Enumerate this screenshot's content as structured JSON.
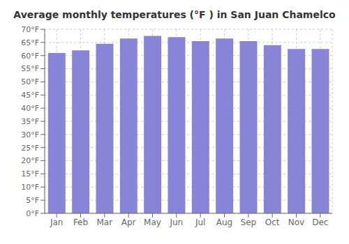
{
  "chart_data": {
    "type": "bar",
    "title": "Average monthly temperatures (°F ) in San Juan Chamelco",
    "categories": [
      "Jan",
      "Feb",
      "Mar",
      "Apr",
      "May",
      "Jun",
      "Jul",
      "Aug",
      "Sep",
      "Oct",
      "Nov",
      "Dec"
    ],
    "values": [
      61.0,
      62.0,
      64.5,
      66.5,
      67.5,
      67.0,
      65.5,
      66.5,
      65.5,
      64.0,
      62.5,
      62.5
    ],
    "ylim": [
      0,
      70
    ],
    "yticks": [
      {
        "value": 0,
        "label": "0°F"
      },
      {
        "value": 5,
        "label": "5°F"
      },
      {
        "value": 10,
        "label": "10°F"
      },
      {
        "value": 15,
        "label": "15°F"
      },
      {
        "value": 20,
        "label": "20°F"
      },
      {
        "value": 25,
        "label": "25°F"
      },
      {
        "value": 30,
        "label": "30°F"
      },
      {
        "value": 35,
        "label": "35°F"
      },
      {
        "value": 40,
        "label": "40°F"
      },
      {
        "value": 45,
        "label": "45°F"
      },
      {
        "value": 50,
        "label": "50°F"
      },
      {
        "value": 55,
        "label": "55°F"
      },
      {
        "value": 60,
        "label": "60°F"
      },
      {
        "value": 65,
        "label": "65°F"
      },
      {
        "value": 70,
        "label": "70°F"
      }
    ],
    "grid": true
  }
}
